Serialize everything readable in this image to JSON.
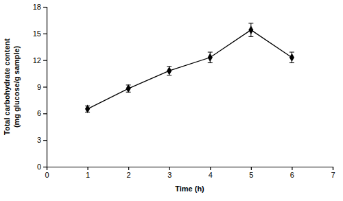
{
  "chart_data": {
    "type": "line",
    "x_label": "Time (h)",
    "y_label": [
      "Total carbohydrate content",
      "(mg glucose/g sample)"
    ],
    "x": [
      1,
      2,
      3,
      4,
      5,
      6
    ],
    "values": [
      6.5,
      8.8,
      10.8,
      12.3,
      15.4,
      12.3
    ],
    "errors": [
      0.35,
      0.4,
      0.5,
      0.6,
      0.75,
      0.6
    ],
    "color": "#000000",
    "marker": "diamond",
    "line_style": "solid",
    "xlim": [
      0,
      7
    ],
    "xticks": [
      0,
      1,
      2,
      3,
      4,
      5,
      6,
      7
    ],
    "ylim": [
      0,
      18
    ],
    "yticks": [
      0,
      3,
      6,
      9,
      12,
      15,
      18
    ],
    "grid": false
  }
}
